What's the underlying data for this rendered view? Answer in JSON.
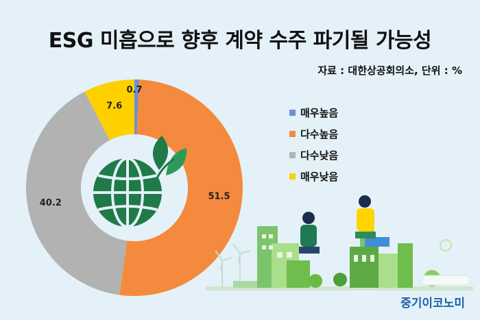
{
  "title": "ESG 미흡으로 향후 계약 수주 파기될 가능성",
  "source": "자료 : 대한상공회의소, 단위 : %",
  "brand": "중기이코노미",
  "chart_data": {
    "type": "pie",
    "title": "ESG 미흡으로 향후 계약 수주 파기될 가능성",
    "categories": [
      "매우높음",
      "다수높음",
      "다수낮음",
      "매우낮음"
    ],
    "values": [
      0.7,
      51.5,
      40.2,
      7.6
    ],
    "value_labels": [
      "0.7",
      "51.5",
      "40.2",
      "7.6"
    ],
    "colors": [
      "#6f8fd0",
      "#f48a3e",
      "#b2b2b2",
      "#ffd000"
    ],
    "donut": true,
    "start": "top",
    "direction": "clockwise",
    "legend": "right"
  },
  "legend_items": [
    {
      "label": "매우높음",
      "color": "#6f8fd0"
    },
    {
      "label": "다수높음",
      "color": "#f48a3e"
    },
    {
      "label": "다수낮음",
      "color": "#b2b2b2"
    },
    {
      "label": "매우낮음",
      "color": "#ffd000"
    }
  ],
  "icons": [
    "globe-icon",
    "leaf-icon",
    "eco-city-illustration"
  ]
}
